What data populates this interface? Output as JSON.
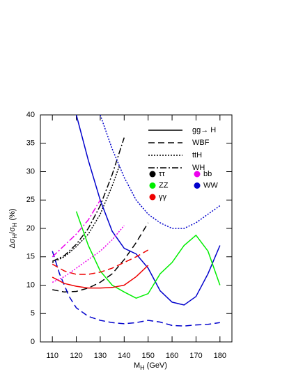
{
  "chart_data": {
    "type": "line",
    "x_label_parts": [
      {
        "text": "M"
      },
      {
        "text": "H",
        "sub": true
      },
      {
        "text": " (GeV)"
      }
    ],
    "y_label_parts": [
      {
        "text": "Δσ"
      },
      {
        "text": "H",
        "sub": true
      },
      {
        "text": "/σ"
      },
      {
        "text": "H",
        "sub": true
      },
      {
        "text": " (%)"
      }
    ],
    "xlim": [
      105,
      185
    ],
    "ylim": [
      0,
      40
    ],
    "xticks": [
      110,
      120,
      130,
      140,
      150,
      160,
      170,
      180
    ],
    "yticks": [
      0,
      5,
      10,
      15,
      20,
      25,
      30,
      35,
      40
    ],
    "legend_styles": [
      {
        "label": "gg→ H",
        "dash": "solid"
      },
      {
        "label": "WBF",
        "dash": "dashed"
      },
      {
        "label": "ttH",
        "dash": "dotted"
      },
      {
        "label": "WH",
        "dash": "dashdot"
      }
    ],
    "legend_colors": [
      {
        "label": "ττ",
        "color": "#000000"
      },
      {
        "label": "ZZ",
        "color": "#00ee00"
      },
      {
        "label": "γγ",
        "color": "#ee0000"
      },
      {
        "label": "bb",
        "color": "#ee00ee"
      },
      {
        "label": "WW",
        "color": "#0000cc"
      }
    ],
    "series": [
      {
        "color": "#000000",
        "dash": "dotted",
        "x": [
          110,
          115,
          120,
          125,
          130,
          135,
          138
        ],
        "values": [
          14,
          15,
          16.8,
          19,
          22.5,
          27.5,
          31
        ]
      },
      {
        "color": "#000000",
        "dash": "dashdot",
        "x": [
          110,
          115,
          120,
          125,
          130,
          135,
          140
        ],
        "values": [
          14.2,
          15.2,
          17.2,
          20,
          24,
          29.5,
          36
        ]
      },
      {
        "color": "#000000",
        "dash": "dashed",
        "x": [
          110,
          115,
          120,
          125,
          130,
          135,
          140,
          145,
          150
        ],
        "values": [
          9.2,
          8.8,
          8.9,
          9.5,
          10.5,
          12,
          14.5,
          17.5,
          21
        ]
      },
      {
        "color": "#0000cc",
        "dash": "solid",
        "x": [
          120,
          125,
          130,
          135,
          140,
          145,
          150,
          155,
          160,
          165,
          170,
          175,
          180
        ],
        "values": [
          40,
          32,
          25,
          19.5,
          16.5,
          15.5,
          13,
          9,
          7,
          6.5,
          8,
          12,
          17
        ]
      },
      {
        "color": "#0000cc",
        "dash": "dotted",
        "x": [
          130,
          135,
          140,
          145,
          150,
          155,
          160,
          165,
          170,
          175,
          180
        ],
        "values": [
          40,
          34,
          29,
          25,
          22.5,
          21,
          20,
          20,
          21,
          22.5,
          24
        ]
      },
      {
        "color": "#0000cc",
        "dash": "dashed",
        "x": [
          110,
          113,
          117,
          120,
          125,
          130,
          135,
          140,
          145,
          150,
          155,
          160,
          165,
          170,
          175,
          180
        ],
        "values": [
          16,
          12,
          8,
          6,
          4.5,
          3.8,
          3.4,
          3.2,
          3.4,
          3.8,
          3.5,
          2.9,
          2.8,
          3,
          3.1,
          3.4
        ]
      },
      {
        "color": "#00ee00",
        "dash": "solid",
        "x": [
          120,
          125,
          130,
          135,
          140,
          145,
          150,
          155,
          160,
          165,
          170,
          175,
          180
        ],
        "values": [
          23,
          17,
          12.5,
          10,
          8.8,
          7.7,
          8.5,
          12,
          14,
          17,
          18.8,
          16,
          10
        ]
      },
      {
        "color": "#ee0000",
        "dash": "solid",
        "x": [
          110,
          115,
          120,
          125,
          130,
          135,
          140,
          145,
          150
        ],
        "values": [
          11.4,
          10.3,
          9.8,
          9.5,
          9.5,
          9.6,
          10,
          11.5,
          13.5
        ]
      },
      {
        "color": "#ee0000",
        "dash": "dashed",
        "x": [
          110,
          115,
          120,
          125,
          130,
          135,
          140,
          145,
          150
        ],
        "values": [
          13.7,
          12.5,
          11.9,
          11.9,
          12.3,
          13,
          14,
          15,
          16.2
        ]
      },
      {
        "color": "#ee00ee",
        "dash": "dashdot",
        "x": [
          110,
          115,
          120,
          125,
          130
        ],
        "values": [
          15,
          17,
          19,
          21.5,
          25
        ]
      },
      {
        "color": "#ee00ee",
        "dash": "dotted",
        "x": [
          110,
          115,
          120,
          125,
          130,
          135,
          140
        ],
        "values": [
          10.5,
          11.5,
          13,
          14.5,
          16,
          18,
          20.5
        ]
      }
    ]
  }
}
